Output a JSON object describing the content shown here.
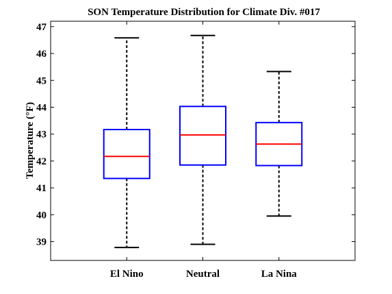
{
  "chart_data": {
    "type": "boxplot",
    "title": "SON Temperature Distribution for Climate Div. #017",
    "xlabel": "",
    "ylabel": "Temperature (°F)",
    "ylim": [
      38.3,
      47.2
    ],
    "yticks": [
      39,
      40,
      41,
      42,
      43,
      44,
      45,
      46,
      47
    ],
    "categories": [
      "El Nino",
      "Neutral",
      "La Nina"
    ],
    "boxes": [
      {
        "category": "El Nino",
        "whisker_low": 38.78,
        "q1": 41.35,
        "median": 42.17,
        "q3": 43.17,
        "whisker_high": 46.58
      },
      {
        "category": "Neutral",
        "whisker_low": 38.9,
        "q1": 41.85,
        "median": 42.97,
        "q3": 44.03,
        "whisker_high": 46.67
      },
      {
        "category": "La Nina",
        "whisker_low": 39.95,
        "q1": 41.83,
        "median": 42.63,
        "q3": 43.43,
        "whisker_high": 45.33
      }
    ],
    "grid": false,
    "colors": {
      "box": "#0000ff",
      "median": "#ff0000",
      "whisker": "#000000"
    }
  }
}
